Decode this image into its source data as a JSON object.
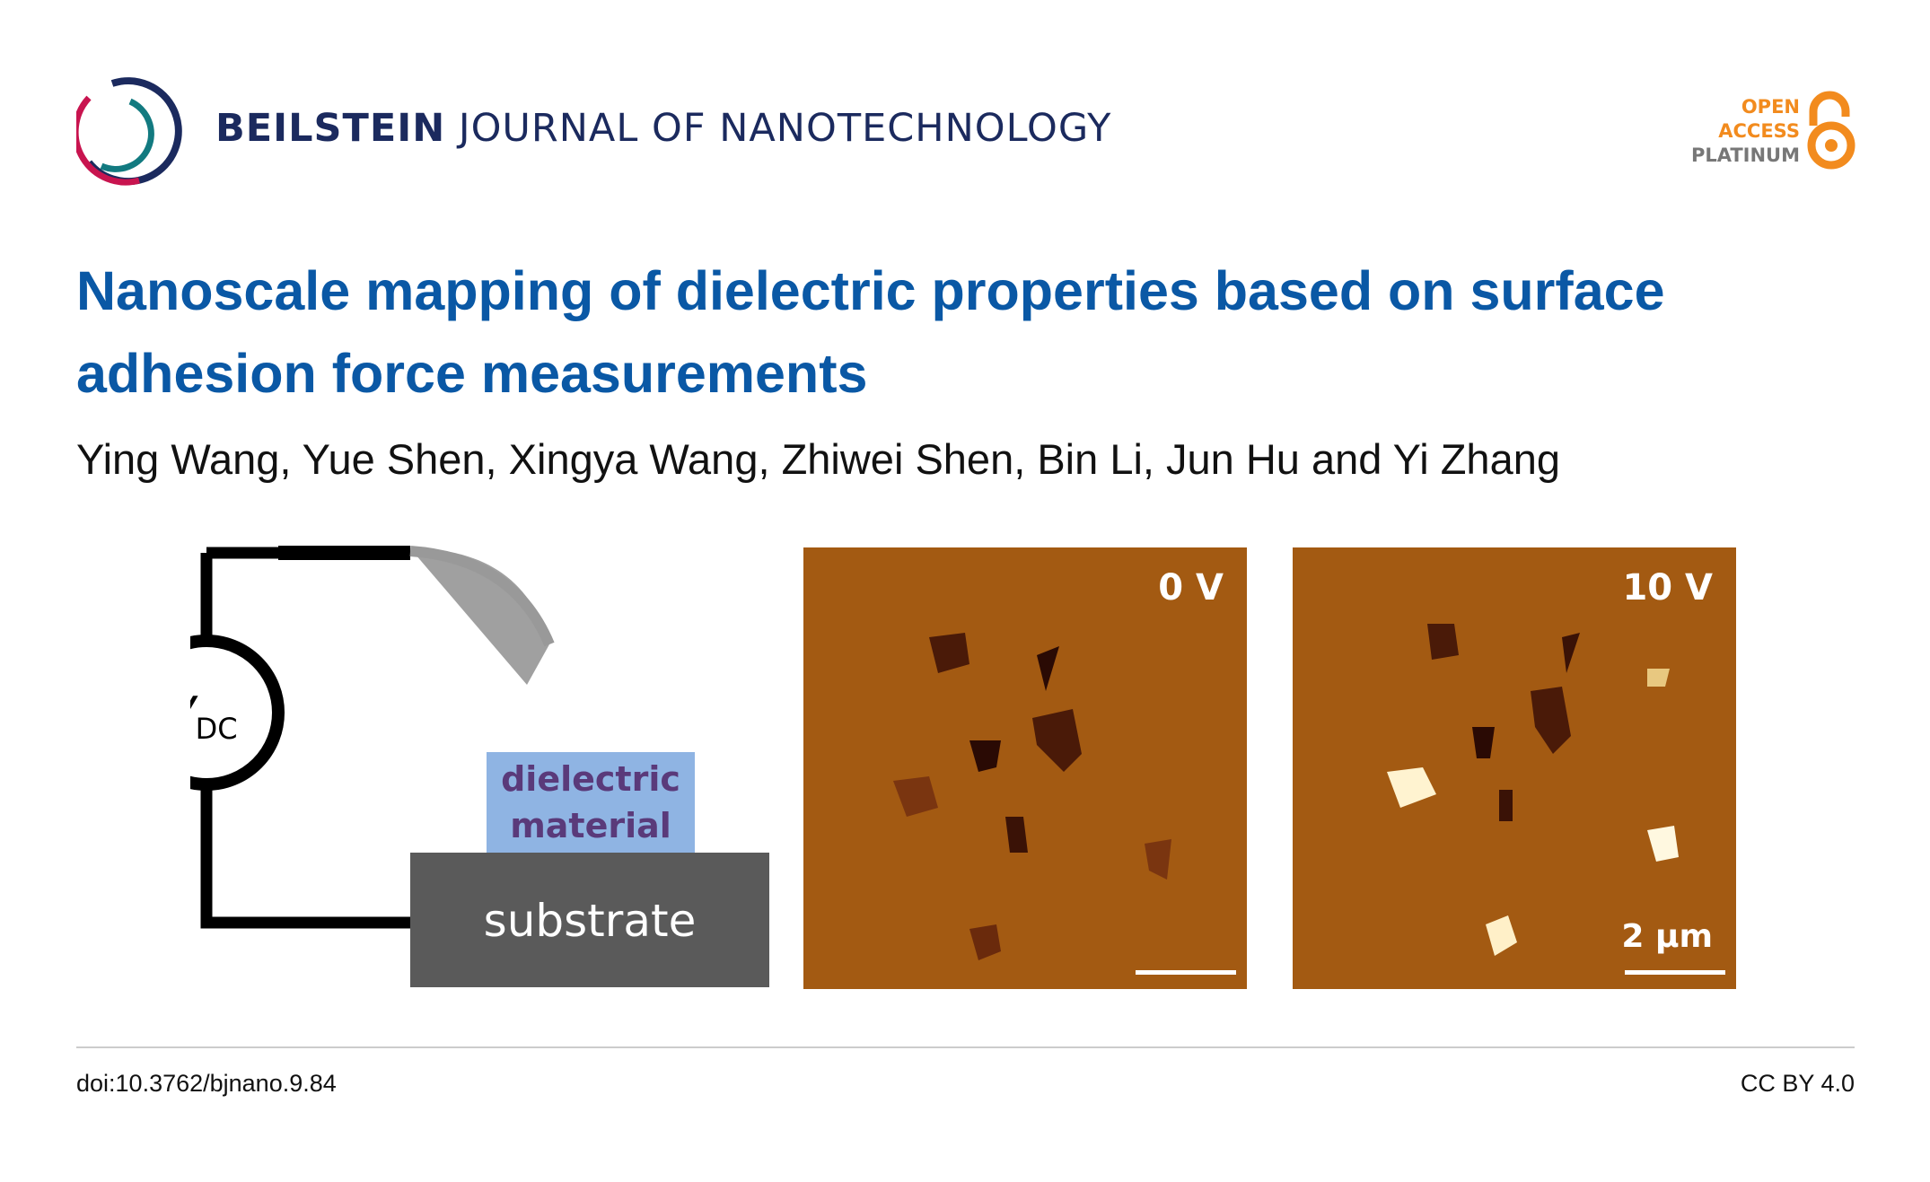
{
  "header": {
    "journal_bold": "BEILSTEIN",
    "journal_rest": "JOURNAL OF NANOTECHNOLOGY",
    "badge": {
      "line1": "OPEN",
      "line2": "ACCESS",
      "line3": "PLATINUM",
      "icon": "open-lock-icon"
    }
  },
  "article": {
    "title": "Nanoscale mapping of dielectric properties based on surface adhesion force measurements",
    "authors": "Ying Wang, Yue Shen, Xingya Wang, Zhiwei Shen, Bin Li, Jun Hu and Yi Zhang"
  },
  "figure": {
    "source_label": "V",
    "source_subscript": "DC",
    "dielectric_label_1": "dielectric",
    "dielectric_label_2": "material",
    "substrate_label": "substrate",
    "panel1_label": "0 V",
    "panel2_label": "10 V",
    "scale_bar_label": "2 µm"
  },
  "footer": {
    "doi": "doi:10.3762/bjnano.9.84",
    "license": "CC BY 4.0"
  },
  "colors": {
    "title": "#0a58a5",
    "brand_navy": "#1b2a5e",
    "oa_orange": "#f28b1e",
    "afm_background": "#a35a12"
  }
}
